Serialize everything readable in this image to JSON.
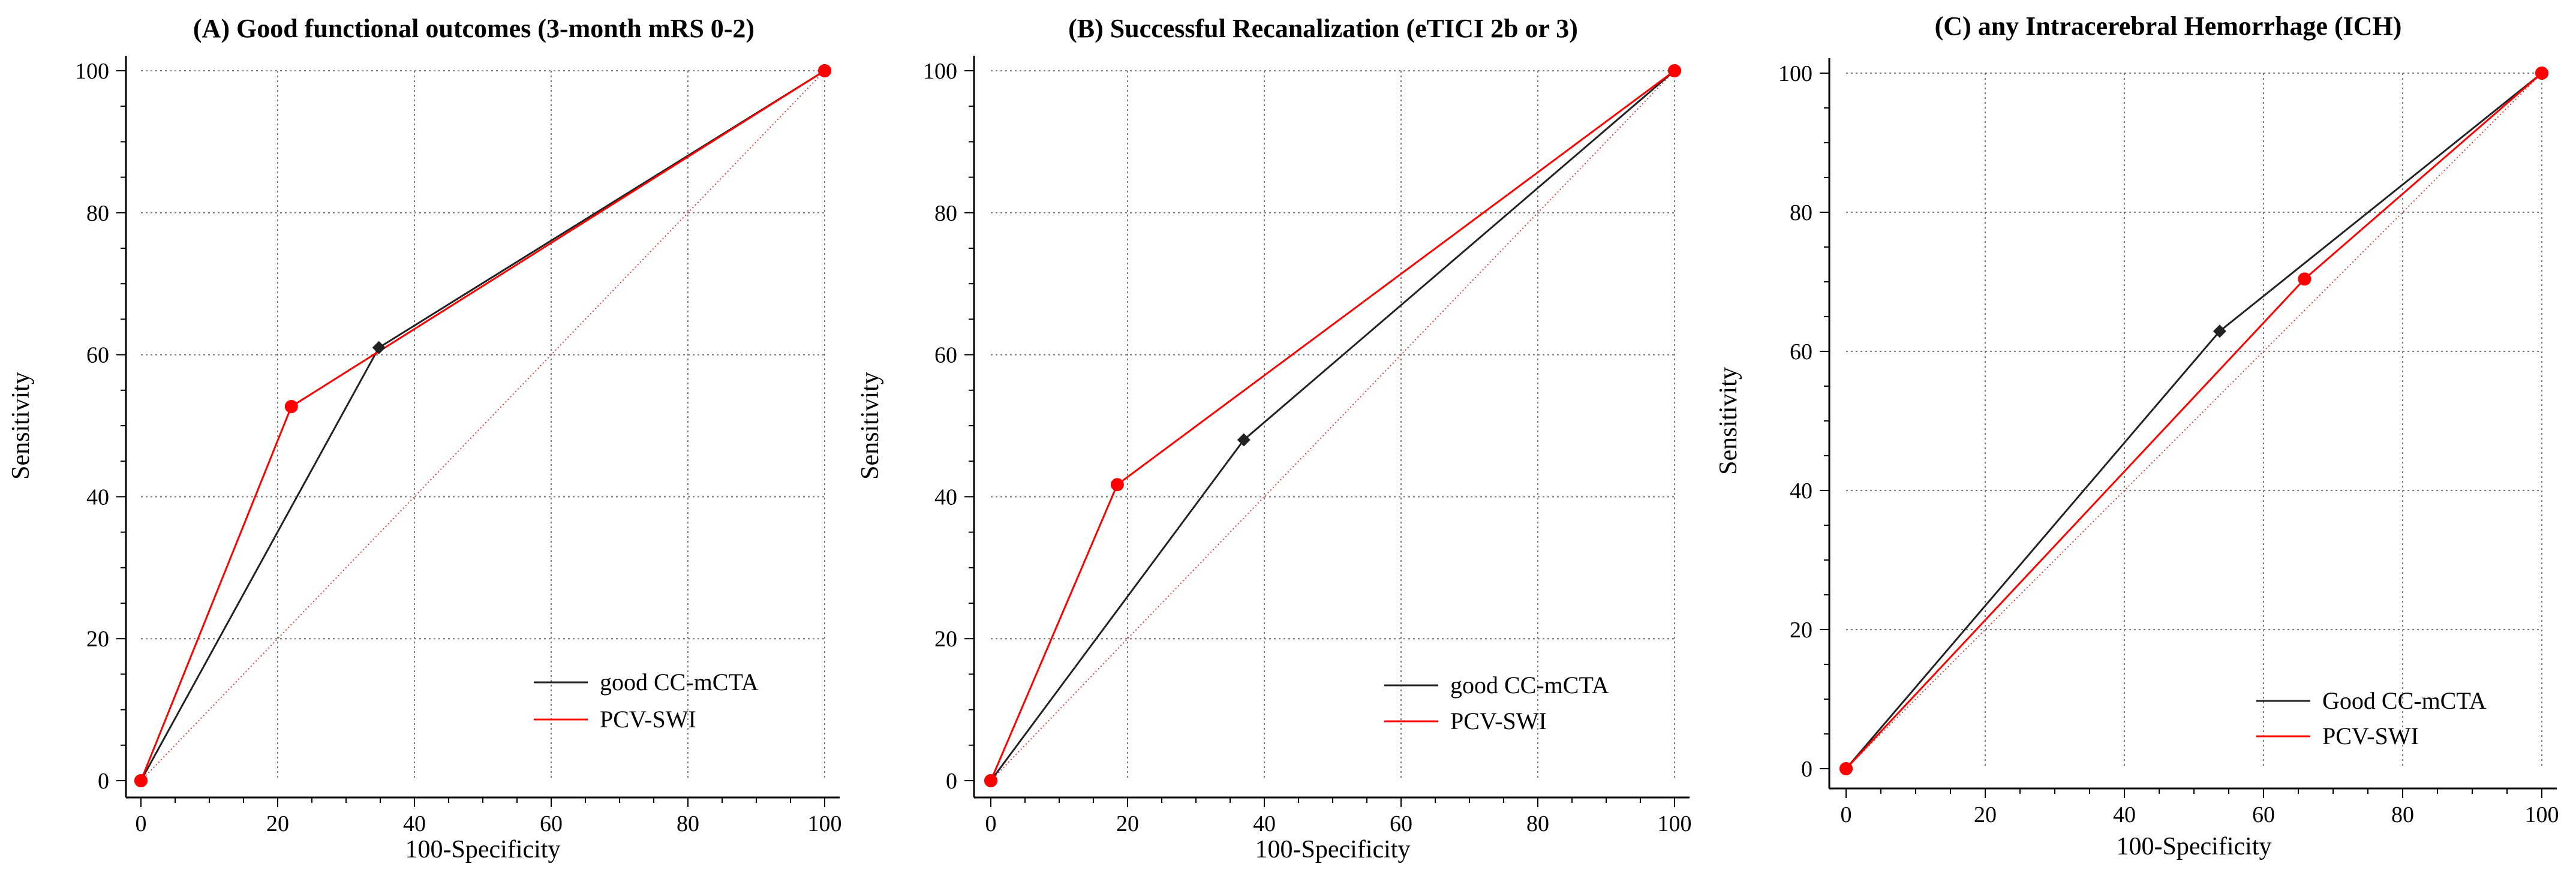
{
  "chart_data": [
    {
      "type": "line",
      "title": "(A) Good functional outcomes (3-month mRS 0-2)",
      "xlabel": "100-Specificity",
      "ylabel": "Sensitivity",
      "xlim": [
        0,
        100
      ],
      "ylim": [
        0,
        100
      ],
      "xticks": [
        0,
        20,
        40,
        60,
        80,
        100
      ],
      "yticks": [
        0,
        20,
        40,
        60,
        80,
        100
      ],
      "grid": true,
      "legend_position": "bottom-right",
      "reference_line": [
        [
          0,
          0
        ],
        [
          100,
          100
        ]
      ],
      "series": [
        {
          "name": "good CC-mCTA",
          "color": "#222222",
          "marker": "diamond",
          "x": [
            0,
            34.8,
            100
          ],
          "y": [
            0,
            61,
            100
          ]
        },
        {
          "name": "PCV-SWI",
          "color": "#ff0000",
          "marker": "circle",
          "x": [
            0,
            22,
            100
          ],
          "y": [
            0,
            52.7,
            100
          ]
        }
      ]
    },
    {
      "type": "line",
      "title": "(B) Successful Recanalization (eTICI 2b or 3)",
      "xlabel": "100-Specificity",
      "ylabel": "Sensitivity",
      "xlim": [
        0,
        100
      ],
      "ylim": [
        0,
        100
      ],
      "xticks": [
        0,
        20,
        40,
        60,
        80,
        100
      ],
      "yticks": [
        0,
        20,
        40,
        60,
        80,
        100
      ],
      "grid": true,
      "legend_position": "bottom-right",
      "reference_line": [
        [
          0,
          0
        ],
        [
          100,
          100
        ]
      ],
      "series": [
        {
          "name": "good CC-mCTA",
          "color": "#222222",
          "marker": "diamond",
          "x": [
            0,
            37,
            100
          ],
          "y": [
            0,
            48,
            100
          ]
        },
        {
          "name": "PCV-SWI",
          "color": "#ff0000",
          "marker": "circle",
          "x": [
            0,
            18.5,
            100
          ],
          "y": [
            0,
            41.7,
            100
          ]
        }
      ]
    },
    {
      "type": "line",
      "title": "(C) any Intracerebral Hemorrhage (ICH)",
      "xlabel": "100-Specificity",
      "ylabel": "Sensitivity",
      "xlim": [
        0,
        100
      ],
      "ylim": [
        0,
        100
      ],
      "xticks": [
        0,
        20,
        40,
        60,
        80,
        100
      ],
      "yticks": [
        0,
        20,
        40,
        60,
        80,
        100
      ],
      "grid": true,
      "legend_position": "bottom-right",
      "reference_line": [
        [
          0,
          0
        ],
        [
          100,
          100
        ]
      ],
      "series": [
        {
          "name": "Good CC-mCTA",
          "color": "#222222",
          "marker": "diamond",
          "x": [
            0,
            53.7,
            100
          ],
          "y": [
            0,
            62.9,
            100
          ]
        },
        {
          "name": "PCV-SWI",
          "color": "#ff0000",
          "marker": "circle",
          "x": [
            0,
            65.9,
            100
          ],
          "y": [
            0,
            70.4,
            100
          ]
        }
      ]
    }
  ]
}
